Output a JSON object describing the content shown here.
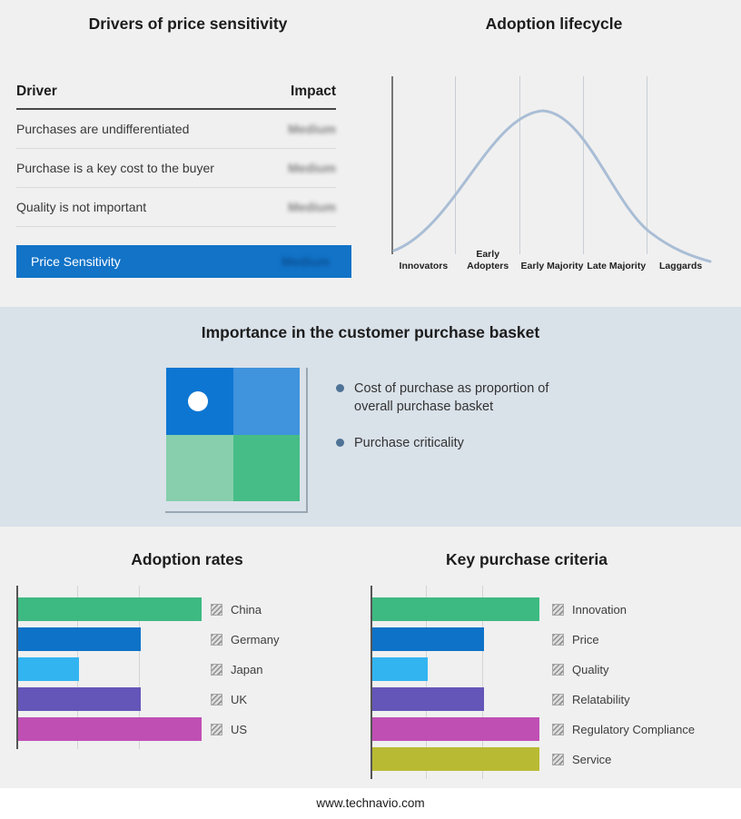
{
  "drivers": {
    "title": "Drivers of price sensitivity",
    "columns": {
      "driver": "Driver",
      "impact": "Impact"
    },
    "rows": [
      {
        "driver": "Purchases are undifferentiated",
        "impact": "Medium"
      },
      {
        "driver": "Purchase is a key cost to the buyer",
        "impact": "Medium"
      },
      {
        "driver": "Quality is not important",
        "impact": "Medium"
      }
    ],
    "highlight_row": {
      "driver": "Price Sensitivity",
      "impact": "Medium"
    },
    "highlight_color": "#1273c7"
  },
  "lifecycle": {
    "title": "Adoption lifecycle",
    "stages": [
      "Innovators",
      "Early Adopters",
      "Early Majority",
      "Late Majority",
      "Laggards"
    ],
    "curve_color": "#a9bdd5"
  },
  "basket": {
    "title": "Importance in the customer purchase basket",
    "bullets": [
      "Cost of purchase as proportion of overall purchase basket",
      "Purchase criticality"
    ],
    "quadrant_colors": [
      "#0d76d2",
      "#4093dd",
      "#87cfad",
      "#46bd86"
    ],
    "band_color": "#d9e1e9"
  },
  "footer": "www.technavio.com",
  "chart_data": [
    {
      "type": "line",
      "title": "Adoption lifecycle",
      "shape": "bell curve",
      "x_categories": [
        "Innovators",
        "Early Adopters",
        "Early Majority",
        "Late Majority",
        "Laggards"
      ],
      "peak_at": "Early Majority",
      "grid": true,
      "legend": false
    },
    {
      "type": "bar",
      "title": "Adoption rates",
      "orientation": "horizontal",
      "categories": [
        "China",
        "Germany",
        "Japan",
        "UK",
        "US"
      ],
      "values": [
        3,
        2,
        1,
        2,
        3
      ],
      "xlim": [
        0,
        3
      ],
      "grid": true,
      "legend_position": "right",
      "colors": [
        "#3dba82",
        "#0e72c8",
        "#32b4f1",
        "#6456b8",
        "#c04fb4"
      ]
    },
    {
      "type": "bar",
      "title": "Key purchase criteria",
      "orientation": "horizontal",
      "categories": [
        "Innovation",
        "Price",
        "Quality",
        "Relatability",
        "Regulatory Compliance",
        "Service"
      ],
      "values": [
        3,
        2,
        1,
        2,
        3,
        3
      ],
      "xlim": [
        0,
        3
      ],
      "grid": true,
      "legend_position": "right",
      "colors": [
        "#3dba82",
        "#0e72c8",
        "#32b4f1",
        "#6456b8",
        "#c04fb4",
        "#b9ba33"
      ]
    }
  ]
}
